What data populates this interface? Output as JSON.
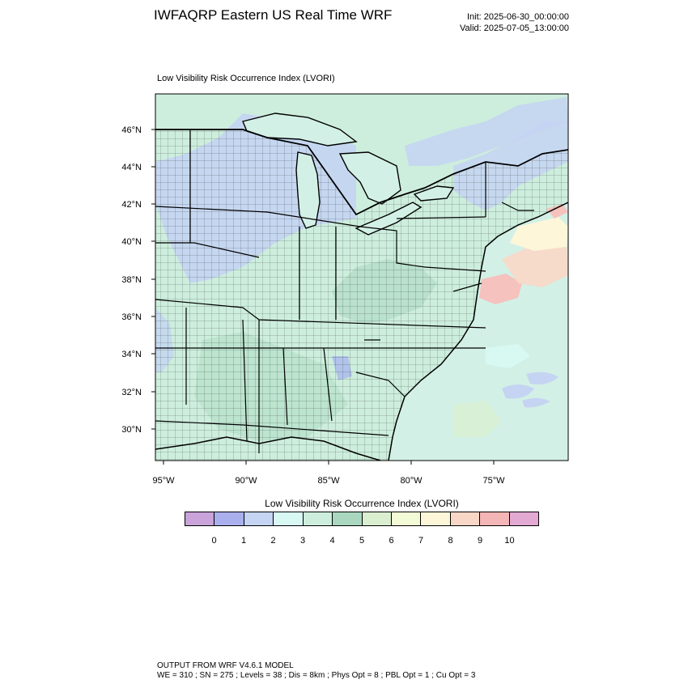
{
  "header": {
    "title": "IWFAQRP Eastern US Real Time WRF",
    "init": "Init: 2025-06-30_00:00:00",
    "valid": "Valid: 2025-07-05_13:00:00"
  },
  "panel": {
    "title": "Low Visibility Risk Occurrence Index   (LVORI)"
  },
  "map": {
    "lat_labels": [
      "46°N",
      "44°N",
      "42°N",
      "40°N",
      "38°N",
      "36°N",
      "34°N",
      "32°N",
      "30°N"
    ],
    "lon_labels": [
      "95°W",
      "90°W",
      "85°W",
      "80°W",
      "75°W"
    ],
    "colors": {
      "ocean": "#d3f0e6",
      "land_base": "#cdeedd",
      "lake": "#d3f0e6",
      "blue_zone": "#c4d4f2",
      "blue_deep": "#aab8ee",
      "green_dark": "#a9d7bf",
      "pink": "#f5c2bd",
      "salmon": "#f9d7c7",
      "yellow": "#fdf6d8",
      "cyan": "#d8f9f3",
      "light_green": "#d9efcf"
    }
  },
  "colorbar": {
    "title": "Low Visibility Risk Occurrence Index  (LVORI)",
    "colors": [
      "#c9a3d9",
      "#aab0ee",
      "#c4d4f2",
      "#d8f9f3",
      "#cdeedd",
      "#a9d7bf",
      "#d9efcf",
      "#f3fbd6",
      "#fdf6d8",
      "#f9d7c7",
      "#f3b5b5",
      "#e2a9d3"
    ],
    "labels": [
      "0",
      "1",
      "2",
      "3",
      "4",
      "5",
      "6",
      "7",
      "8",
      "9",
      "10"
    ]
  },
  "footer": {
    "line1": "OUTPUT FROM WRF V4.6.1 MODEL",
    "line2": "WE = 310 ; SN = 275 ; Levels = 38 ; Dis = 8km ; Phys Opt = 8 ; PBL Opt = 1 ; Cu Opt = 3"
  }
}
